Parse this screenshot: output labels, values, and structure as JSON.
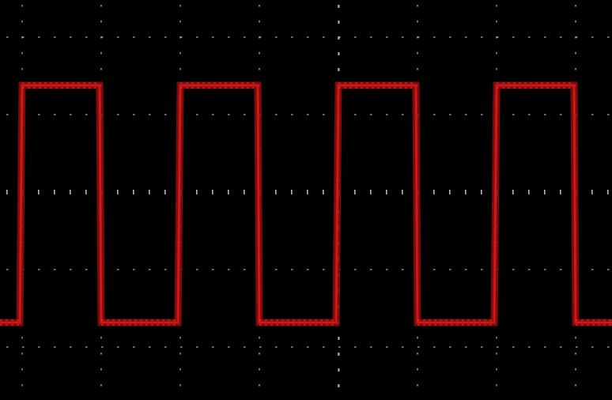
{
  "chart_data": {
    "type": "line",
    "title": "",
    "xlabel": "",
    "ylabel": "",
    "grid": true,
    "legend": "none",
    "divisions": {
      "x": 8,
      "y": 5
    },
    "xlim": [
      0,
      8
    ],
    "ylim": [
      -2.5,
      2.5
    ],
    "series": [
      {
        "color": "#d01818",
        "style": "square-wave",
        "high": 1.5,
        "low": -1.5,
        "period": 2,
        "duty": 0.5,
        "x": [
          0,
          0.25,
          0.28,
          1.26,
          1.28,
          2.25,
          2.28,
          3.26,
          3.28,
          4.25,
          4.28,
          5.26,
          5.28,
          6.25,
          6.28,
          7.26,
          7.28,
          8
        ],
        "y": [
          -1.5,
          -1.5,
          1.5,
          1.5,
          -1.5,
          -1.5,
          1.5,
          1.5,
          -1.5,
          -1.5,
          1.5,
          1.5,
          -1.5,
          -1.5,
          1.5,
          1.5,
          -1.5,
          -1.5
        ]
      }
    ]
  },
  "colors": {
    "background": "#000000",
    "grid_dots": "#d8d8d8",
    "trace": "#d01818",
    "trace_dark": "#8c0c0c"
  }
}
